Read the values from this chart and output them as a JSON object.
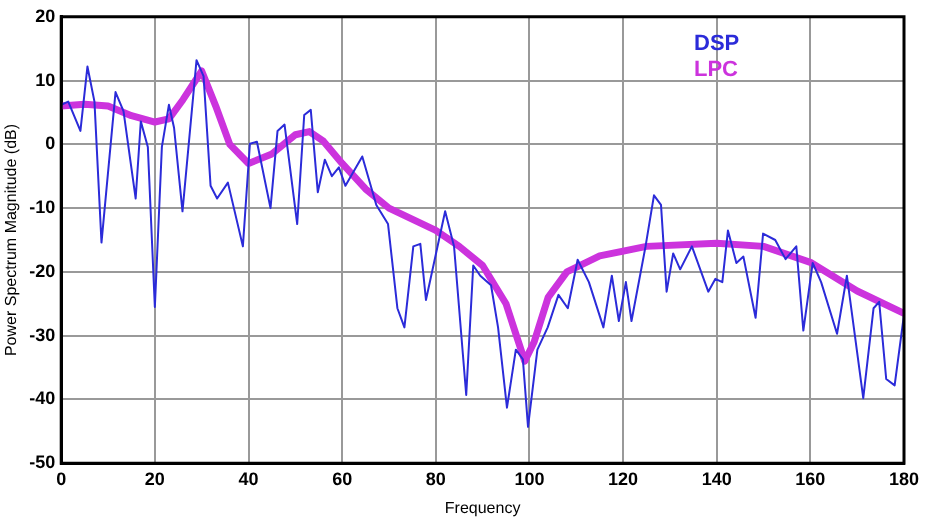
{
  "chart_data": {
    "type": "line",
    "xlabel": "Frequency",
    "ylabel": "Power Spectrum Magnitude (dB)",
    "xlim": [
      0,
      180
    ],
    "xticks": [
      0,
      20,
      40,
      60,
      80,
      100,
      120,
      140,
      160,
      180
    ],
    "ylim": [
      -50,
      20
    ],
    "yticks": [
      -50,
      -40,
      -30,
      -20,
      -10,
      0,
      10,
      20
    ],
    "grid": true,
    "legend": "top right",
    "line_style": "solid",
    "marker": "none",
    "series": [
      {
        "name": "DSP",
        "color": "#2b2bd9",
        "x": [
          0,
          1.5,
          4.1,
          5.6,
          7.1,
          8.6,
          11.6,
          13.3,
          15.9,
          17,
          18.5,
          20,
          21.5,
          23,
          24.1,
          25.9,
          28.9,
          30.4,
          31.9,
          33.3,
          35.6,
          38.8,
          40.3,
          41.8,
          44.7,
          46.2,
          47.7,
          50.4,
          51.9,
          53.3,
          54.8,
          56.3,
          57.8,
          59.3,
          60.7,
          64.3,
          67.3,
          69.8,
          71.8,
          73.3,
          75.2,
          76.7,
          77.9,
          82,
          83.9,
          86.5,
          88,
          89.5,
          91.8,
          93.3,
          95.2,
          97.1,
          98.6,
          99.7,
          101.7,
          103.9,
          106.2,
          108.2,
          110.3,
          112.7,
          115.8,
          117.6,
          119.1,
          120.6,
          121.8,
          124.8,
          126.6,
          128.1,
          129.3,
          130.7,
          132.2,
          134.7,
          138.2,
          139.7,
          141.2,
          142.4,
          144.2,
          145.7,
          148.3,
          149.9,
          152.5,
          154.7,
          157,
          158.5,
          160.5,
          162.3,
          165.7,
          167.8,
          171.3,
          173.5,
          174.7,
          176.2,
          178,
          180
        ],
        "values": [
          6.2,
          6.7,
          2.1,
          12.2,
          6.7,
          -15.4,
          8.2,
          5.2,
          -8.5,
          3.6,
          -0.4,
          -25.5,
          -0.4,
          6.2,
          2.6,
          -10.5,
          13.2,
          10.7,
          -6.5,
          -8.5,
          -6,
          -16,
          0.1,
          0.4,
          -10,
          2.1,
          3.1,
          -12.5,
          4.6,
          5.4,
          -7.5,
          -2.4,
          -5,
          -3.6,
          -6.5,
          -1.9,
          -9.5,
          -12.5,
          -25.7,
          -28.7,
          -16,
          -15.6,
          -24.4,
          -10.5,
          -16,
          -39.3,
          -19,
          -20.6,
          -22.1,
          -28.7,
          -41.3,
          -32.2,
          -33.7,
          -44.3,
          -32.2,
          -28.7,
          -23.6,
          -25.7,
          -18.1,
          -21.6,
          -28.7,
          -20.6,
          -27.7,
          -21.6,
          -27.7,
          -16,
          -8,
          -9.5,
          -23.1,
          -17.1,
          -19.6,
          -16,
          -23.1,
          -21.1,
          -21.6,
          -13.5,
          -18.6,
          -17.6,
          -27.2,
          -14,
          -15,
          -18,
          -16,
          -29.2,
          -18.6,
          -21.6,
          -29.7,
          -20.6,
          -39.8,
          -25.7,
          -24.7,
          -36.8,
          -37.8,
          -26.7
        ]
      },
      {
        "name": "LPC",
        "color": "#cc33dd",
        "x": [
          0,
          5,
          10,
          15,
          20,
          23,
          26,
          30,
          33,
          36,
          40,
          45,
          50,
          53,
          56,
          60,
          65,
          70,
          80,
          85,
          90,
          95,
          99,
          101,
          104,
          108,
          115,
          125,
          140,
          150,
          160,
          170,
          180
        ],
        "values": [
          6,
          6.3,
          6,
          4.5,
          3.5,
          4,
          7,
          11.5,
          6,
          0,
          -3,
          -1.5,
          1.5,
          2,
          0.5,
          -3,
          -7,
          -10,
          -13.5,
          -16,
          -19,
          -25,
          -34,
          -31,
          -24,
          -20,
          -17.5,
          -16,
          -15.5,
          -16,
          -18.5,
          -23,
          -26.5
        ]
      }
    ]
  }
}
